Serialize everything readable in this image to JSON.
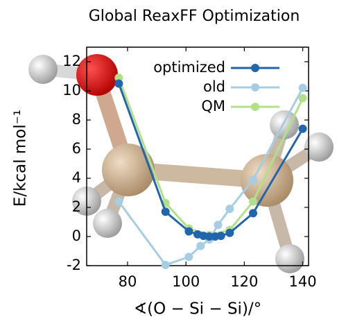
{
  "chart_data": {
    "type": "line",
    "title": "Global ReaxFF Optimization",
    "xlabel": "∢(O − Si − Si)/°",
    "ylabel": "E/kcal mol⁻¹",
    "xlim": [
      66,
      142
    ],
    "xticks": [
      80,
      100,
      120,
      140
    ],
    "ylim": [
      -2,
      13
    ],
    "yticks": [
      -2,
      0,
      2,
      4,
      6,
      8,
      10,
      12
    ],
    "legend": "upper right",
    "series": [
      {
        "name": "optimized",
        "color": "#2166ac",
        "x": [
          77,
          93,
          101,
          104,
          106,
          108,
          110,
          112,
          115,
          123,
          140
        ],
        "values": [
          10.5,
          1.7,
          0.35,
          0.15,
          0.05,
          0,
          0,
          0.05,
          0.25,
          1.6,
          7.4
        ]
      },
      {
        "name": "old",
        "color": "#a6cde3",
        "x": [
          77,
          93,
          101,
          105,
          108,
          111,
          115,
          123,
          140
        ],
        "values": [
          2.4,
          -1.95,
          -1.4,
          -0.65,
          -0.2,
          0.8,
          1.9,
          3.9,
          10.2
        ]
      },
      {
        "name": "QM",
        "color": "#b2df8a",
        "x": [
          77,
          93,
          101,
          108,
          115,
          123,
          140
        ],
        "values": [
          10.9,
          2.3,
          0.55,
          0.1,
          0.45,
          2.4,
          9.5
        ]
      }
    ]
  }
}
